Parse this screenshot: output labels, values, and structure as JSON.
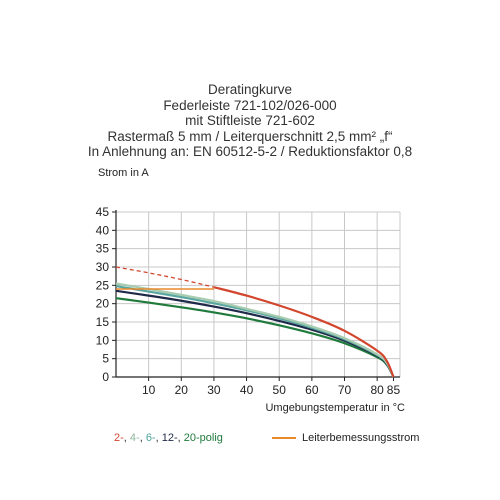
{
  "title_lines": [
    "Deratingkurve",
    "Federleiste 721-102/026-000",
    "mit Stiftleiste 721-602",
    "Rastermaß 5 mm / Leiterquerschnitt 2,5 mm² „f“",
    "In Anlehnung an: EN 60512-5-2 / Reduktionsfaktor 0,8"
  ],
  "colors": {
    "grid": "#c8c8c8",
    "axis": "#222222",
    "red": "#d2462e",
    "orange": "#e8892b",
    "lightgreen": "#a8ccb0",
    "teal": "#5aa6a0",
    "navy": "#1e2a48",
    "darkgreen": "#1f7a3c"
  },
  "legend": {
    "poles": [
      {
        "text": "2-",
        "color": "#d2462e"
      },
      {
        "text": ", ",
        "color": "#333333"
      },
      {
        "text": "4-",
        "color": "#8fb79a"
      },
      {
        "text": ", ",
        "color": "#333333"
      },
      {
        "text": "6-",
        "color": "#4aa39a"
      },
      {
        "text": ", ",
        "color": "#333333"
      },
      {
        "text": "12-",
        "color": "#1e2a48"
      },
      {
        "text": ", ",
        "color": "#333333"
      },
      {
        "text": "20-",
        "color": "#1f7a3c"
      },
      {
        "text": "polig",
        "color": "#1f7a3c"
      }
    ],
    "rated_current_label": "Leiterbemessungsstrom"
  },
  "chart_data": {
    "type": "line",
    "ylabel": "Strom in A",
    "xlabel": "Umgebungstemperatur in °C",
    "xlim": [
      0,
      87
    ],
    "ylim": [
      0,
      45
    ],
    "xticks": [
      10,
      20,
      30,
      40,
      50,
      60,
      70,
      80,
      85
    ],
    "yticks": [
      0,
      5,
      10,
      15,
      20,
      25,
      30,
      35,
      40,
      45
    ],
    "grid": true,
    "legend_placement": "bottom",
    "series": [
      {
        "name": "2-polig",
        "color": "#d2462e",
        "x": [
          0,
          10,
          20,
          30,
          40,
          50,
          60,
          70,
          80,
          83,
          85
        ],
        "y": [
          30,
          28.4,
          26.6,
          24.5,
          22.2,
          19.5,
          16.4,
          12.6,
          7.2,
          4.3,
          0
        ],
        "dashed_until_x": 30
      },
      {
        "name": "4-polig",
        "color": "#a8ccb0",
        "x": [
          0,
          10,
          20,
          30,
          40,
          50,
          60,
          70,
          80,
          83,
          85
        ],
        "y": [
          25.5,
          24,
          22.4,
          20.7,
          18.6,
          16.4,
          13.8,
          10.6,
          6.2,
          3.8,
          0
        ]
      },
      {
        "name": "6-polig",
        "color": "#5aa6a0",
        "x": [
          0,
          10,
          20,
          30,
          40,
          50,
          60,
          70,
          80,
          83,
          85
        ],
        "y": [
          24.8,
          23.3,
          21.8,
          20.1,
          18.2,
          16,
          13.4,
          10.3,
          6,
          3.7,
          0
        ]
      },
      {
        "name": "12-polig",
        "color": "#1e2a48",
        "x": [
          0,
          10,
          20,
          30,
          40,
          50,
          60,
          70,
          80,
          83,
          85
        ],
        "y": [
          23.5,
          22.2,
          20.8,
          19.2,
          17.4,
          15.3,
          12.9,
          9.9,
          5.8,
          3.5,
          0
        ]
      },
      {
        "name": "20-polig",
        "color": "#1f7a3c",
        "x": [
          0,
          10,
          20,
          30,
          40,
          50,
          60,
          70,
          80,
          83,
          85
        ],
        "y": [
          21.5,
          20.3,
          19,
          17.6,
          16,
          14.1,
          11.9,
          9.2,
          5.4,
          3.3,
          0
        ]
      },
      {
        "name": "Leiterbemessungsstrom",
        "color": "#e8892b",
        "x": [
          0,
          30
        ],
        "y": [
          24,
          24
        ]
      }
    ]
  }
}
